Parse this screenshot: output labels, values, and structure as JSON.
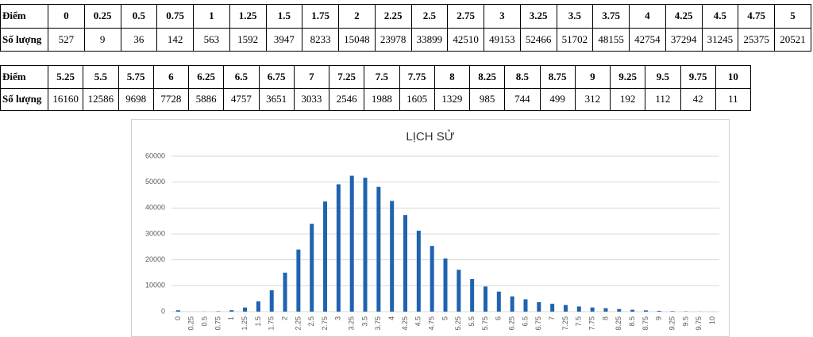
{
  "tables": [
    {
      "rows": [
        [
          "Điểm",
          0,
          0.25,
          0.5,
          0.75,
          1,
          1.25,
          1.5,
          1.75,
          2,
          2.25,
          2.5,
          2.75,
          3,
          3.25,
          3.5,
          3.75,
          4,
          4.25,
          4.5,
          4.75,
          5
        ],
        [
          "Số lượng",
          527,
          9,
          36,
          142,
          563,
          1592,
          3947,
          8233,
          15048,
          23978,
          33899,
          42510,
          49153,
          52466,
          51702,
          48155,
          42754,
          37294,
          31245,
          25375,
          20521
        ]
      ]
    },
    {
      "rows": [
        [
          "Điểm",
          5.25,
          5.5,
          5.75,
          6,
          6.25,
          6.5,
          6.75,
          7,
          7.25,
          7.5,
          7.75,
          8,
          8.25,
          8.5,
          8.75,
          9,
          9.25,
          9.5,
          9.75,
          10
        ],
        [
          "Số lượng",
          16160,
          12586,
          9698,
          7728,
          5886,
          4757,
          3651,
          3033,
          2546,
          1988,
          1605,
          1329,
          985,
          744,
          499,
          312,
          192,
          112,
          42,
          11
        ]
      ]
    }
  ],
  "chart_data": {
    "type": "bar",
    "title": "LỊCH SỬ",
    "categories": [
      "0",
      "0.25",
      "0.5",
      "0.75",
      "1",
      "1.25",
      "1.5",
      "1.75",
      "2",
      "2.25",
      "2.5",
      "2.75",
      "3",
      "3.25",
      "3.5",
      "3.75",
      "4",
      "4.25",
      "4.5",
      "4.75",
      "5",
      "5.25",
      "5.5",
      "5.75",
      "6",
      "6.25",
      "6.5",
      "6.75",
      "7",
      "7.25",
      "7.5",
      "7.75",
      "8",
      "8.25",
      "8.5",
      "8.75",
      "9",
      "9.25",
      "9.5",
      "9.75",
      "10"
    ],
    "values": [
      527,
      9,
      36,
      142,
      563,
      1592,
      3947,
      8233,
      15048,
      23978,
      33899,
      42510,
      49153,
      52466,
      51702,
      48155,
      42754,
      37294,
      31245,
      25375,
      20521,
      16160,
      12586,
      9698,
      7728,
      5886,
      4757,
      3651,
      3033,
      2546,
      1988,
      1605,
      1329,
      985,
      744,
      499,
      312,
      192,
      112,
      42,
      11
    ],
    "color": "#1f63b0",
    "ylim": [
      0,
      60000
    ],
    "yticks": [
      0,
      10000,
      20000,
      30000,
      40000,
      50000,
      60000
    ],
    "grid": true
  }
}
